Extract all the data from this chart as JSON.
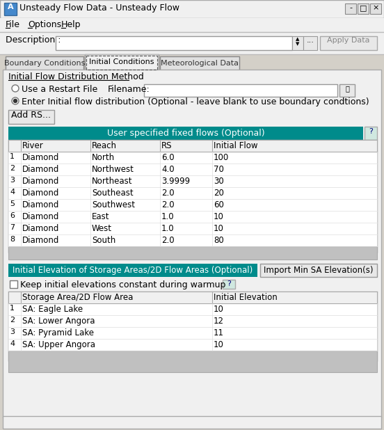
{
  "title": "Unsteady Flow Data - Unsteady Flow",
  "menu_items": [
    "File",
    "Options",
    "Help"
  ],
  "tabs": [
    "Boundary Conditions",
    "Initial Conditions",
    "Meteorological Data"
  ],
  "active_tab": 1,
  "section1_title": "Initial Flow Distribution Method",
  "radio1": "Use a Restart File",
  "radio2": "Enter Initial flow distribution (Optional - leave blank to use boundary condtions)",
  "filename_label": "Filename:",
  "add_button": "Add RS...",
  "table1_header": "User specified fixed flows (Optional)",
  "table1_cols": [
    "River",
    "Reach",
    "RS",
    "Initial Flow"
  ],
  "table1_rows": [
    [
      "Diamond",
      "North",
      "6.0",
      "100"
    ],
    [
      "Diamond",
      "Northwest",
      "4.0",
      "70"
    ],
    [
      "Diamond",
      "Northeast",
      "3.9999",
      "30"
    ],
    [
      "Diamond",
      "Southeast",
      "2.0",
      "20"
    ],
    [
      "Diamond",
      "Southwest",
      "2.0",
      "60"
    ],
    [
      "Diamond",
      "East",
      "1.0",
      "10"
    ],
    [
      "Diamond",
      "West",
      "1.0",
      "10"
    ],
    [
      "Diamond",
      "South",
      "2.0",
      "80"
    ]
  ],
  "table2_header": "Initial Elevation of Storage Areas/2D Flow Areas (Optional)",
  "import_button": "Import Min SA Elevation(s)",
  "checkbox_label": "Keep initial elevations constant during warmup",
  "table2_cols": [
    "Storage Area/2D Flow Area",
    "Initial Elevation"
  ],
  "table2_rows": [
    [
      "SA: Eagle Lake",
      "10"
    ],
    [
      "SA: Lower Angora",
      "12"
    ],
    [
      "SA: Pyramid Lake",
      "11"
    ],
    [
      "SA: Upper Angora",
      "10"
    ]
  ],
  "bg_color": "#f0f0f0",
  "teal_color": "#008B8B",
  "light_gray": "#d4d0c8",
  "mid_gray": "#c0c0c0",
  "dark_gray": "#808080",
  "border_color": "#999999",
  "white": "#ffffff"
}
